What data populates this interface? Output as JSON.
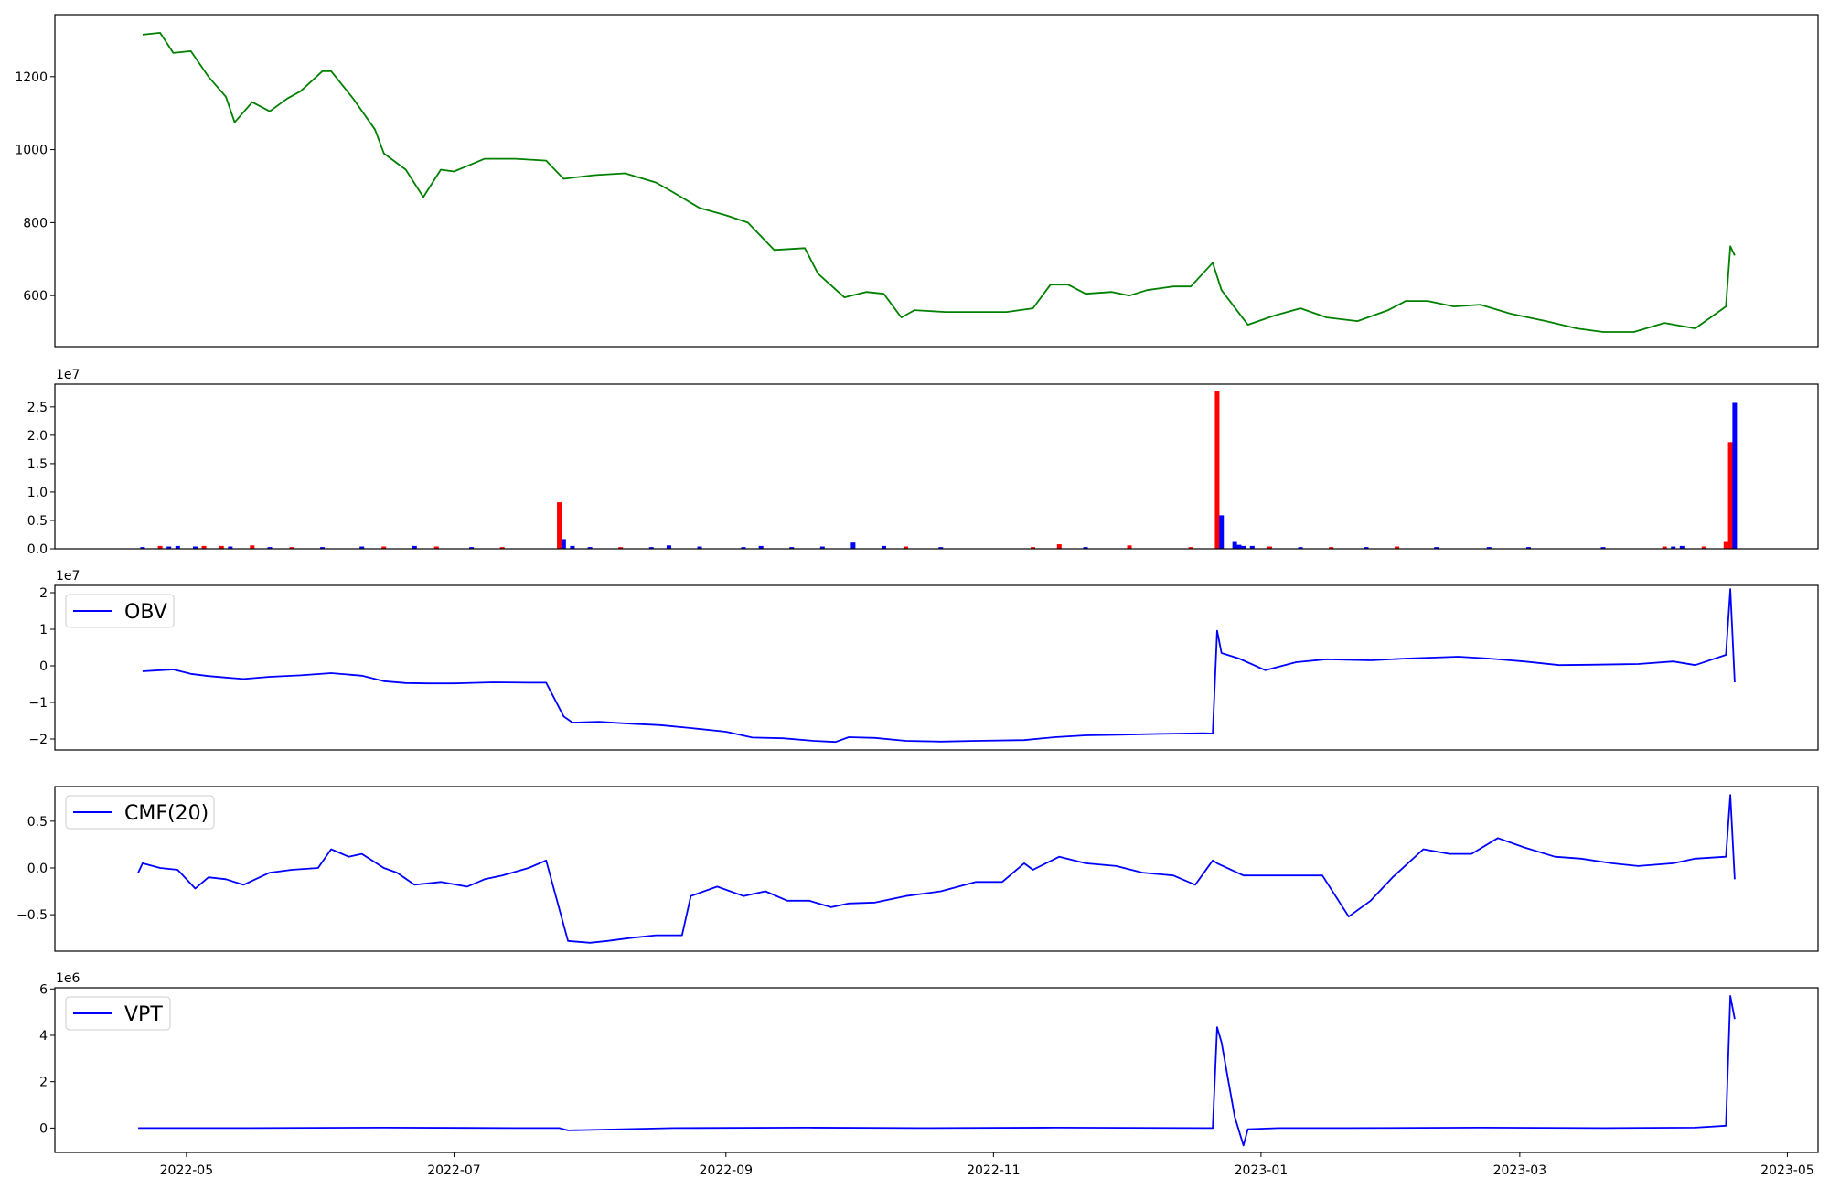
{
  "chart_data": [
    {
      "type": "line",
      "series": [
        {
          "color": "#008000",
          "x": [
            "2022-04-21",
            "2022-04-25",
            "2022-04-28",
            "2022-05-02",
            "2022-05-06",
            "2022-05-10",
            "2022-05-12",
            "2022-05-16",
            "2022-05-20",
            "2022-05-24",
            "2022-05-27",
            "2022-06-01",
            "2022-06-03",
            "2022-06-08",
            "2022-06-13",
            "2022-06-15",
            "2022-06-20",
            "2022-06-24",
            "2022-06-28",
            "2022-07-01",
            "2022-07-08",
            "2022-07-15",
            "2022-07-22",
            "2022-07-26",
            "2022-08-02",
            "2022-08-09",
            "2022-08-16",
            "2022-08-19",
            "2022-08-26",
            "2022-09-01",
            "2022-09-06",
            "2022-09-12",
            "2022-09-19",
            "2022-09-22",
            "2022-09-28",
            "2022-10-03",
            "2022-10-07",
            "2022-10-11",
            "2022-10-14",
            "2022-10-21",
            "2022-10-28",
            "2022-11-04",
            "2022-11-10",
            "2022-11-14",
            "2022-11-18",
            "2022-11-22",
            "2022-11-28",
            "2022-12-02",
            "2022-12-06",
            "2022-12-12",
            "2022-12-16",
            "2022-12-21",
            "2022-12-23",
            "2022-12-29",
            "2023-01-04",
            "2023-01-10",
            "2023-01-16",
            "2023-01-23",
            "2023-01-30",
            "2023-02-03",
            "2023-02-08",
            "2023-02-14",
            "2023-02-20",
            "2023-02-27",
            "2023-03-07",
            "2023-03-14",
            "2023-03-20",
            "2023-03-27",
            "2023-04-03",
            "2023-04-10",
            "2023-04-17",
            "2023-04-18",
            "2023-04-19"
          ],
          "y": [
            1315,
            1320,
            1265,
            1270,
            1200,
            1145,
            1075,
            1130,
            1105,
            1140,
            1160,
            1215,
            1215,
            1140,
            1055,
            990,
            945,
            870,
            945,
            940,
            975,
            975,
            970,
            920,
            930,
            935,
            910,
            890,
            840,
            820,
            800,
            725,
            730,
            660,
            595,
            610,
            605,
            540,
            560,
            555,
            555,
            555,
            565,
            630,
            630,
            605,
            610,
            600,
            615,
            625,
            625,
            690,
            615,
            520,
            545,
            565,
            540,
            530,
            560,
            585,
            585,
            570,
            575,
            550,
            530,
            510,
            500,
            500,
            525,
            510,
            570,
            735,
            710
          ]
        }
      ],
      "ylim": [
        460,
        1370
      ],
      "yticks": [
        600,
        800,
        1000,
        1200
      ]
    },
    {
      "type": "bar",
      "multiplier": "1e7",
      "ylim": [
        0,
        2.9
      ],
      "yticks": [
        0.0,
        0.5,
        1.0,
        1.5,
        2.0,
        2.5
      ],
      "up_color": "#0000ff",
      "down_color": "#ff0000",
      "bars": [
        {
          "x": "2022-04-21",
          "v": 0.03,
          "c": "up"
        },
        {
          "x": "2022-04-25",
          "v": 0.05,
          "c": "down"
        },
        {
          "x": "2022-04-27",
          "v": 0.04,
          "c": "up"
        },
        {
          "x": "2022-04-29",
          "v": 0.05,
          "c": "up"
        },
        {
          "x": "2022-05-03",
          "v": 0.04,
          "c": "up"
        },
        {
          "x": "2022-05-05",
          "v": 0.05,
          "c": "down"
        },
        {
          "x": "2022-05-09",
          "v": 0.05,
          "c": "down"
        },
        {
          "x": "2022-05-11",
          "v": 0.04,
          "c": "up"
        },
        {
          "x": "2022-05-16",
          "v": 0.06,
          "c": "down"
        },
        {
          "x": "2022-05-20",
          "v": 0.03,
          "c": "up"
        },
        {
          "x": "2022-05-25",
          "v": 0.03,
          "c": "down"
        },
        {
          "x": "2022-06-01",
          "v": 0.03,
          "c": "up"
        },
        {
          "x": "2022-06-10",
          "v": 0.04,
          "c": "up"
        },
        {
          "x": "2022-06-15",
          "v": 0.04,
          "c": "down"
        },
        {
          "x": "2022-06-22",
          "v": 0.05,
          "c": "up"
        },
        {
          "x": "2022-06-27",
          "v": 0.04,
          "c": "down"
        },
        {
          "x": "2022-07-05",
          "v": 0.03,
          "c": "up"
        },
        {
          "x": "2022-07-12",
          "v": 0.03,
          "c": "down"
        },
        {
          "x": "2022-07-25",
          "v": 0.82,
          "c": "down"
        },
        {
          "x": "2022-07-26",
          "v": 0.17,
          "c": "up"
        },
        {
          "x": "2022-07-28",
          "v": 0.05,
          "c": "up"
        },
        {
          "x": "2022-08-01",
          "v": 0.03,
          "c": "up"
        },
        {
          "x": "2022-08-08",
          "v": 0.03,
          "c": "down"
        },
        {
          "x": "2022-08-15",
          "v": 0.03,
          "c": "up"
        },
        {
          "x": "2022-08-19",
          "v": 0.06,
          "c": "up"
        },
        {
          "x": "2022-08-26",
          "v": 0.04,
          "c": "up"
        },
        {
          "x": "2022-09-05",
          "v": 0.03,
          "c": "up"
        },
        {
          "x": "2022-09-09",
          "v": 0.05,
          "c": "up"
        },
        {
          "x": "2022-09-16",
          "v": 0.03,
          "c": "up"
        },
        {
          "x": "2022-09-23",
          "v": 0.04,
          "c": "up"
        },
        {
          "x": "2022-09-30",
          "v": 0.11,
          "c": "up"
        },
        {
          "x": "2022-10-07",
          "v": 0.05,
          "c": "up"
        },
        {
          "x": "2022-10-12",
          "v": 0.04,
          "c": "down"
        },
        {
          "x": "2022-10-20",
          "v": 0.03,
          "c": "up"
        },
        {
          "x": "2022-11-10",
          "v": 0.03,
          "c": "down"
        },
        {
          "x": "2022-11-16",
          "v": 0.08,
          "c": "down"
        },
        {
          "x": "2022-11-22",
          "v": 0.03,
          "c": "up"
        },
        {
          "x": "2022-12-02",
          "v": 0.06,
          "c": "down"
        },
        {
          "x": "2022-12-16",
          "v": 0.03,
          "c": "down"
        },
        {
          "x": "2022-12-22",
          "v": 2.78,
          "c": "down"
        },
        {
          "x": "2022-12-23",
          "v": 0.59,
          "c": "up"
        },
        {
          "x": "2022-12-26",
          "v": 0.12,
          "c": "up"
        },
        {
          "x": "2022-12-27",
          "v": 0.07,
          "c": "up"
        },
        {
          "x": "2022-12-28",
          "v": 0.05,
          "c": "up"
        },
        {
          "x": "2022-12-30",
          "v": 0.05,
          "c": "up"
        },
        {
          "x": "2023-01-03",
          "v": 0.04,
          "c": "down"
        },
        {
          "x": "2023-01-10",
          "v": 0.03,
          "c": "up"
        },
        {
          "x": "2023-01-17",
          "v": 0.03,
          "c": "down"
        },
        {
          "x": "2023-01-25",
          "v": 0.03,
          "c": "up"
        },
        {
          "x": "2023-02-01",
          "v": 0.04,
          "c": "down"
        },
        {
          "x": "2023-02-10",
          "v": 0.03,
          "c": "up"
        },
        {
          "x": "2023-02-22",
          "v": 0.03,
          "c": "up"
        },
        {
          "x": "2023-03-03",
          "v": 0.03,
          "c": "up"
        },
        {
          "x": "2023-03-20",
          "v": 0.03,
          "c": "up"
        },
        {
          "x": "2023-04-03",
          "v": 0.04,
          "c": "down"
        },
        {
          "x": "2023-04-05",
          "v": 0.04,
          "c": "up"
        },
        {
          "x": "2023-04-07",
          "v": 0.05,
          "c": "up"
        },
        {
          "x": "2023-04-12",
          "v": 0.04,
          "c": "down"
        },
        {
          "x": "2023-04-17",
          "v": 0.12,
          "c": "down"
        },
        {
          "x": "2023-04-18",
          "v": 1.88,
          "c": "down"
        },
        {
          "x": "2023-04-19",
          "v": 2.57,
          "c": "up"
        }
      ]
    },
    {
      "type": "line",
      "multiplier": "1e7",
      "legend": [
        "OBV"
      ],
      "ylim": [
        -2.3,
        2.2
      ],
      "yticks": [
        -2,
        -1,
        0,
        1,
        2
      ],
      "series": [
        {
          "name": "OBV",
          "color": "#0000ff",
          "x": [
            "2022-04-21",
            "2022-04-25",
            "2022-04-28",
            "2022-05-02",
            "2022-05-06",
            "2022-05-10",
            "2022-05-14",
            "2022-05-20",
            "2022-05-27",
            "2022-06-03",
            "2022-06-10",
            "2022-06-15",
            "2022-06-20",
            "2022-06-25",
            "2022-07-01",
            "2022-07-10",
            "2022-07-18",
            "2022-07-22",
            "2022-07-26",
            "2022-07-28",
            "2022-08-03",
            "2022-08-10",
            "2022-08-17",
            "2022-08-24",
            "2022-09-01",
            "2022-09-07",
            "2022-09-14",
            "2022-09-21",
            "2022-09-26",
            "2022-09-29",
            "2022-10-05",
            "2022-10-12",
            "2022-10-20",
            "2022-10-28",
            "2022-11-08",
            "2022-11-15",
            "2022-11-22",
            "2022-12-01",
            "2022-12-09",
            "2022-12-19",
            "2022-12-21",
            "2022-12-22",
            "2022-12-23",
            "2022-12-27",
            "2023-01-02",
            "2023-01-09",
            "2023-01-16",
            "2023-01-26",
            "2023-02-03",
            "2023-02-15",
            "2023-02-22",
            "2023-03-02",
            "2023-03-10",
            "2023-03-17",
            "2023-03-28",
            "2023-04-05",
            "2023-04-10",
            "2023-04-17",
            "2023-04-18",
            "2023-04-19"
          ],
          "y": [
            -0.15,
            -0.12,
            -0.1,
            -0.22,
            -0.28,
            -0.32,
            -0.36,
            -0.3,
            -0.26,
            -0.2,
            -0.27,
            -0.42,
            -0.47,
            -0.48,
            -0.48,
            -0.45,
            -0.46,
            -0.46,
            -1.38,
            -1.55,
            -1.53,
            -1.58,
            -1.62,
            -1.7,
            -1.8,
            -1.96,
            -1.98,
            -2.05,
            -2.08,
            -1.95,
            -1.97,
            -2.05,
            -2.07,
            -2.05,
            -2.03,
            -1.95,
            -1.9,
            -1.88,
            -1.86,
            -1.84,
            -1.85,
            0.96,
            0.35,
            0.2,
            -0.12,
            0.1,
            0.18,
            0.15,
            0.2,
            0.25,
            0.2,
            0.12,
            0.02,
            0.03,
            0.05,
            0.12,
            0.02,
            0.3,
            2.1,
            -0.45
          ]
        }
      ]
    },
    {
      "type": "line",
      "legend": [
        "CMF(20)"
      ],
      "ylim": [
        -0.89,
        0.87
      ],
      "yticks": [
        -0.5,
        0.0,
        0.5
      ],
      "series": [
        {
          "name": "CMF(20)",
          "color": "#0000ff",
          "x": [
            "2022-04-20",
            "2022-04-21",
            "2022-04-25",
            "2022-04-29",
            "2022-05-03",
            "2022-05-06",
            "2022-05-10",
            "2022-05-14",
            "2022-05-20",
            "2022-05-25",
            "2022-05-31",
            "2022-06-03",
            "2022-06-07",
            "2022-06-10",
            "2022-06-15",
            "2022-06-18",
            "2022-06-22",
            "2022-06-28",
            "2022-07-04",
            "2022-07-08",
            "2022-07-12",
            "2022-07-18",
            "2022-07-22",
            "2022-07-27",
            "2022-08-01",
            "2022-08-05",
            "2022-08-10",
            "2022-08-16",
            "2022-08-22",
            "2022-08-24",
            "2022-08-30",
            "2022-09-05",
            "2022-09-10",
            "2022-09-15",
            "2022-09-20",
            "2022-09-25",
            "2022-09-29",
            "2022-10-05",
            "2022-10-12",
            "2022-10-20",
            "2022-10-28",
            "2022-11-03",
            "2022-11-08",
            "2022-11-10",
            "2022-11-16",
            "2022-11-22",
            "2022-11-29",
            "2022-12-05",
            "2022-12-12",
            "2022-12-17",
            "2022-12-21",
            "2022-12-22",
            "2022-12-28",
            "2023-01-06",
            "2023-01-15",
            "2023-01-21",
            "2023-01-26",
            "2023-01-31",
            "2023-02-07",
            "2023-02-13",
            "2023-02-18",
            "2023-02-24",
            "2023-03-02",
            "2023-03-09",
            "2023-03-15",
            "2023-03-22",
            "2023-03-28",
            "2023-04-05",
            "2023-04-10",
            "2023-04-17",
            "2023-04-18",
            "2023-04-19"
          ],
          "y": [
            -0.05,
            0.05,
            0.0,
            -0.02,
            -0.22,
            -0.1,
            -0.12,
            -0.18,
            -0.05,
            -0.02,
            0.0,
            0.2,
            0.12,
            0.15,
            0.0,
            -0.05,
            -0.18,
            -0.15,
            -0.2,
            -0.12,
            -0.08,
            0.0,
            0.08,
            -0.78,
            -0.8,
            -0.78,
            -0.75,
            -0.72,
            -0.72,
            -0.3,
            -0.2,
            -0.3,
            -0.25,
            -0.35,
            -0.35,
            -0.42,
            -0.38,
            -0.37,
            -0.3,
            -0.25,
            -0.15,
            -0.15,
            0.05,
            -0.02,
            0.12,
            0.05,
            0.02,
            -0.05,
            -0.08,
            -0.18,
            0.08,
            0.05,
            -0.08,
            -0.08,
            -0.08,
            -0.52,
            -0.35,
            -0.1,
            0.2,
            0.15,
            0.15,
            0.32,
            0.22,
            0.12,
            0.1,
            0.05,
            0.02,
            0.05,
            0.1,
            0.12,
            0.78,
            -0.12
          ]
        }
      ]
    },
    {
      "type": "line",
      "multiplier": "1e6",
      "legend": [
        "VPT"
      ],
      "ylim": [
        -1.05,
        6.05
      ],
      "yticks": [
        0,
        2,
        4,
        6
      ],
      "series": [
        {
          "name": "VPT",
          "color": "#0000ff",
          "x": [
            "2022-04-20",
            "2022-05-15",
            "2022-06-15",
            "2022-07-15",
            "2022-07-25",
            "2022-07-27",
            "2022-08-20",
            "2022-09-20",
            "2022-10-15",
            "2022-11-15",
            "2022-12-20",
            "2022-12-21",
            "2022-12-22",
            "2022-12-23",
            "2022-12-26",
            "2022-12-28",
            "2022-12-29",
            "2023-01-05",
            "2023-01-20",
            "2023-02-20",
            "2023-03-20",
            "2023-04-10",
            "2023-04-17",
            "2023-04-18",
            "2023-04-19"
          ],
          "y": [
            0.0,
            0.0,
            0.02,
            0.0,
            0.0,
            -0.1,
            0.0,
            0.02,
            0.0,
            0.02,
            0.0,
            0.0,
            4.35,
            3.7,
            0.5,
            -0.75,
            -0.05,
            0.0,
            0.0,
            0.02,
            0.0,
            0.02,
            0.1,
            5.7,
            4.7
          ]
        }
      ]
    }
  ],
  "x_axis": {
    "range": [
      "2022-04-01",
      "2023-05-08"
    ],
    "ticks": [
      "2022-05",
      "2022-07",
      "2022-09",
      "2022-11",
      "2023-01",
      "2023-03",
      "2023-05"
    ]
  }
}
